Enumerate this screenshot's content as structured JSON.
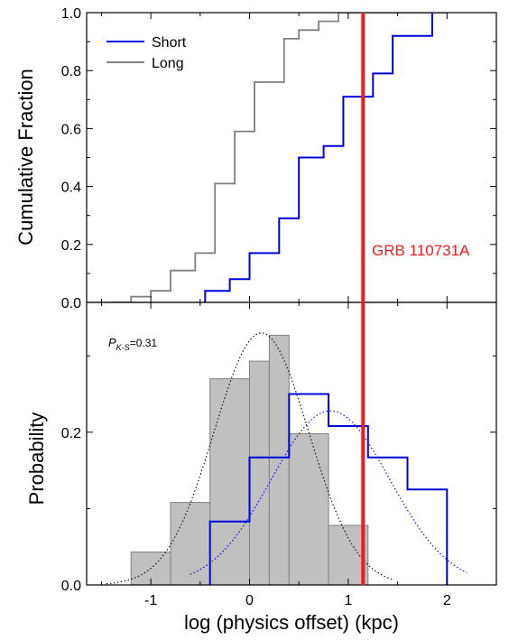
{
  "colors": {
    "short": "#0000dd",
    "long": "#7f7f7f",
    "grb_line": "#ee1c1c",
    "hist_fill": "#c0c0c0",
    "fit_long": "#000000",
    "fit_short": "#0000dd"
  },
  "chart_data": [
    {
      "type": "line",
      "subtype": "step-cdf",
      "ylabel": "Cumulative Fraction",
      "xlim": [
        -1.65,
        2.5
      ],
      "ylim": [
        0,
        1.0
      ],
      "yticks": [
        "0.0",
        "0.2",
        "0.4",
        "0.6",
        "0.8",
        "1.0"
      ],
      "grid": false,
      "legend": {
        "placement": "top-left",
        "entries": [
          "Short",
          "Long"
        ]
      },
      "series": [
        {
          "name": "Short",
          "color": "#0000dd",
          "x": [
            -0.45,
            -0.45,
            -0.2,
            -0.2,
            0.0,
            0.0,
            0.3,
            0.3,
            0.5,
            0.5,
            0.75,
            0.75,
            0.95,
            0.95,
            1.05,
            1.05,
            1.25,
            1.25,
            1.45,
            1.45,
            1.65,
            1.65,
            1.85,
            1.85
          ],
          "y": [
            0.0,
            0.04,
            0.04,
            0.08,
            0.08,
            0.17,
            0.17,
            0.29,
            0.29,
            0.5,
            0.5,
            0.54,
            0.54,
            0.71,
            0.71,
            0.71,
            0.71,
            0.79,
            0.79,
            0.92,
            0.92,
            0.92,
            0.92,
            1.0
          ]
        },
        {
          "name": "Long",
          "color": "#7f7f7f",
          "x": [
            -1.4,
            -1.2,
            -1.2,
            -1.0,
            -1.0,
            -0.8,
            -0.8,
            -0.55,
            -0.55,
            -0.35,
            -0.35,
            -0.15,
            -0.15,
            0.05,
            0.05,
            0.35,
            0.35,
            0.5,
            0.5,
            0.7,
            0.7,
            0.9,
            0.9,
            1.15,
            1.15,
            2.0
          ],
          "y": [
            0.0,
            0.0,
            0.02,
            0.02,
            0.04,
            0.04,
            0.11,
            0.11,
            0.17,
            0.17,
            0.41,
            0.41,
            0.59,
            0.59,
            0.76,
            0.76,
            0.91,
            0.91,
            0.94,
            0.94,
            0.97,
            0.97,
            1.0,
            1.0,
            1.0,
            1.0
          ]
        }
      ]
    },
    {
      "type": "bar",
      "subtype": "histogram",
      "ylabel": "Probability",
      "xlabel": "log (physics offset) (kpc)",
      "xlim": [
        -1.65,
        2.5
      ],
      "ylim": [
        0,
        0.37
      ],
      "xticks": [
        "-1",
        "0",
        "1",
        "2"
      ],
      "yticks": [
        "0.0",
        "0.2"
      ],
      "annotation": {
        "main": "P",
        "sub": "K-S",
        "rest": "=0.31"
      },
      "series": [
        {
          "name": "Long",
          "style": "filled-histogram",
          "bins": [
            {
              "x0": -1.2,
              "x1": -0.8,
              "value": 0.043
            },
            {
              "x0": -0.8,
              "x1": -0.4,
              "value": 0.108
            },
            {
              "x0": -0.4,
              "x1": 0.0,
              "value": 0.27
            },
            {
              "x0": 0.0,
              "x1": 0.2,
              "value": 0.293
            },
            {
              "x0": 0.2,
              "x1": 0.4,
              "value": 0.327
            },
            {
              "x0": 0.4,
              "x1": 0.8,
              "value": 0.198
            },
            {
              "x0": 0.8,
              "x1": 1.2,
              "value": 0.078
            }
          ]
        },
        {
          "name": "Short",
          "style": "step-outline",
          "bins": [
            {
              "x0": -0.4,
              "x1": 0.0,
              "value": 0.083
            },
            {
              "x0": 0.0,
              "x1": 0.4,
              "value": 0.167
            },
            {
              "x0": 0.4,
              "x1": 0.8,
              "value": 0.25
            },
            {
              "x0": 0.8,
              "x1": 1.2,
              "value": 0.208
            },
            {
              "x0": 1.2,
              "x1": 1.6,
              "value": 0.167
            },
            {
              "x0": 1.6,
              "x1": 2.0,
              "value": 0.125
            }
          ]
        },
        {
          "name": "Long fit",
          "style": "dotted-gaussian",
          "mu": 0.12,
          "sigma": 0.48,
          "amp": 0.33,
          "range": [
            -1.45,
            1.45
          ]
        },
        {
          "name": "Short fit",
          "style": "dotted-gaussian",
          "mu": 0.82,
          "sigma": 0.6,
          "amp": 0.228,
          "range": [
            -0.6,
            2.2
          ]
        }
      ]
    }
  ],
  "marker": {
    "x": 1.15,
    "label": "GRB 110731A"
  }
}
